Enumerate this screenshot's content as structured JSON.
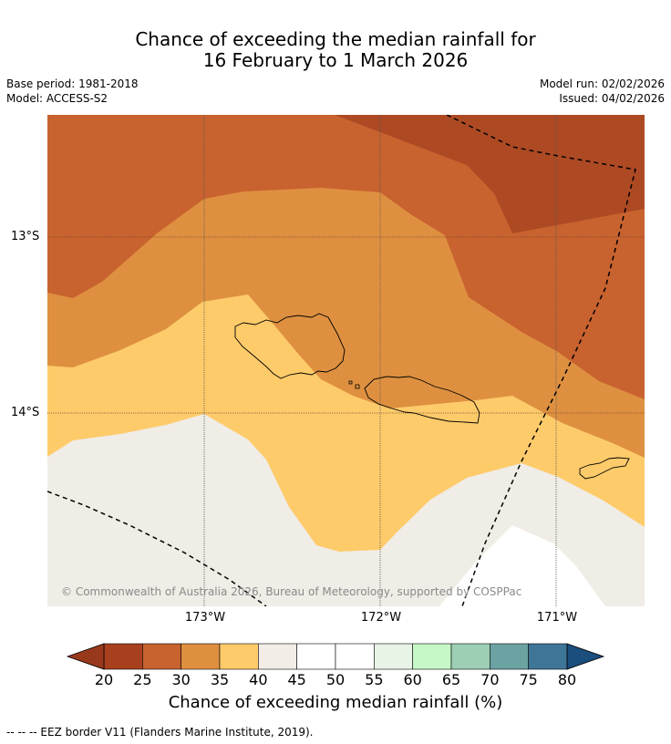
{
  "title": {
    "line1": "Chance of exceeding the median rainfall for",
    "line2": "16 February to 1 March 2026"
  },
  "meta_left": {
    "base_period": "Base period: 1981-2018",
    "model": "Model: ACCESS-S2"
  },
  "meta_right": {
    "model_run": "Model run: 02/02/2026",
    "issued": "Issued: 04/02/2026"
  },
  "lat_labels": [
    "13°S",
    "14°S"
  ],
  "lon_labels": [
    "173°W",
    "172°W",
    "171°W"
  ],
  "copyright": "© Commonwealth of Australia 2026, Bureau of Meteorology, supported by COSPPac",
  "colorbar": {
    "ticks": [
      "20",
      "25",
      "30",
      "35",
      "40",
      "45",
      "50",
      "55",
      "60",
      "65",
      "70",
      "75",
      "80"
    ],
    "colors": [
      "#a8401e",
      "#c8622f",
      "#de9040",
      "#fecb6a",
      "#f2ede6",
      "#ffffff",
      "#ffffff",
      "#e8f5e6",
      "#c6f7c6",
      "#9ccfb4",
      "#6ba3a3",
      "#3f7597",
      "#1b4d7d"
    ],
    "under_color": "#99391c",
    "over_color": "#1b4d7d",
    "label": "Chance of exceeding median rainfall (%)"
  },
  "footnote": "--  --  -- EEZ border V11 (Flanders Marine Institute, 2019).",
  "region_colors": {
    "band_20_25": "#ad4a24",
    "band_25_30": "#c8622f",
    "band_30_35": "#de9040",
    "band_35_40": "#fecb6a",
    "band_40_45": "#f0ece6",
    "band_45_50": "#ffffff"
  }
}
